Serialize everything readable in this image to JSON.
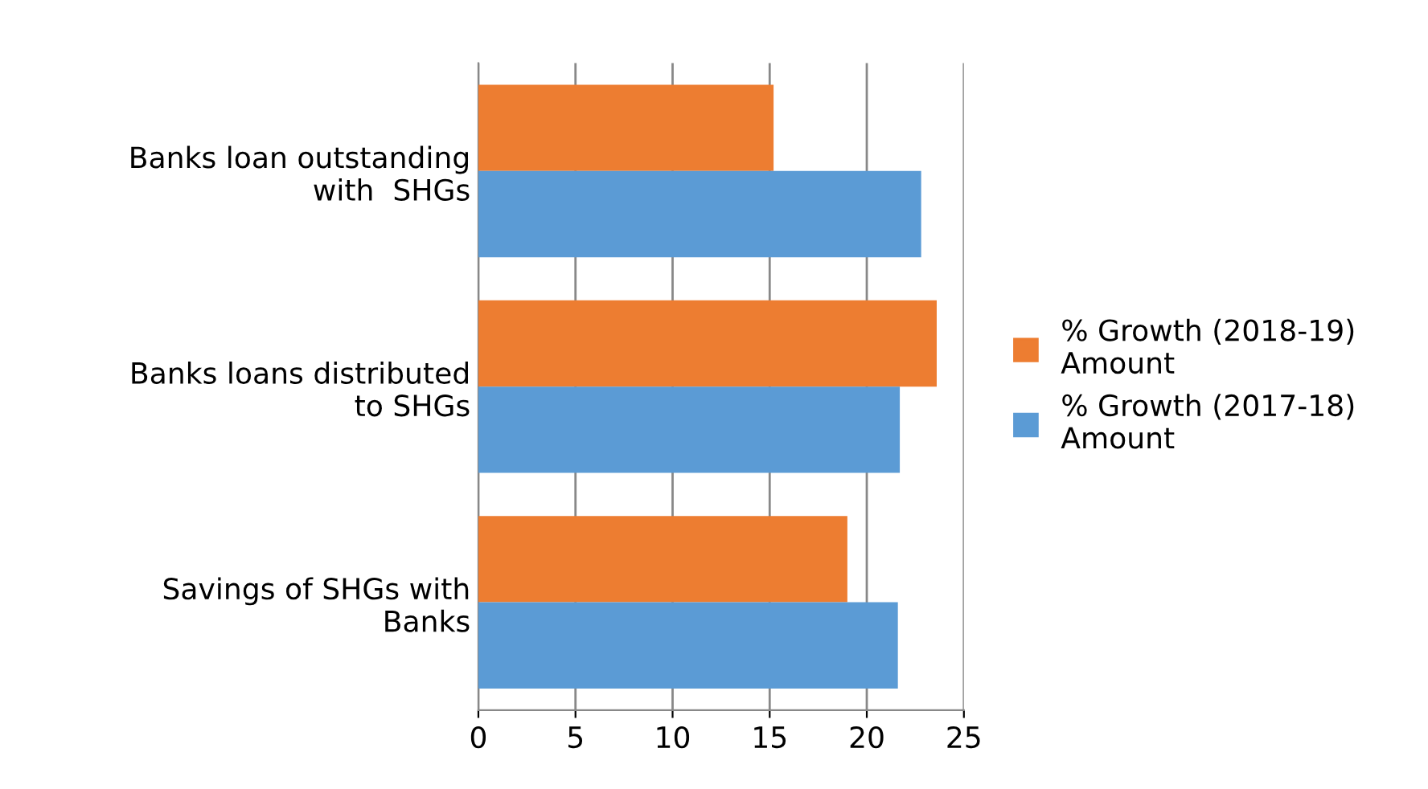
{
  "chart_data": {
    "type": "bar",
    "orientation": "horizontal",
    "categories": [
      "Banks loan outstanding\nwith  SHGs",
      "Banks loans distributed\nto SHGs",
      "Savings of SHGs with\nBanks"
    ],
    "series": [
      {
        "name": "% Growth (2018-19)\nAmount",
        "color": "#ed7d31",
        "values": [
          15.2,
          23.6,
          19.0
        ]
      },
      {
        "name": "% Growth (2017-18)\nAmount",
        "color": "#5b9bd5",
        "values": [
          22.8,
          21.7,
          21.6
        ]
      }
    ],
    "xlim": [
      0,
      25
    ],
    "xticks": [
      0,
      5,
      10,
      15,
      20,
      25
    ],
    "grid": "x",
    "legend": "right"
  }
}
